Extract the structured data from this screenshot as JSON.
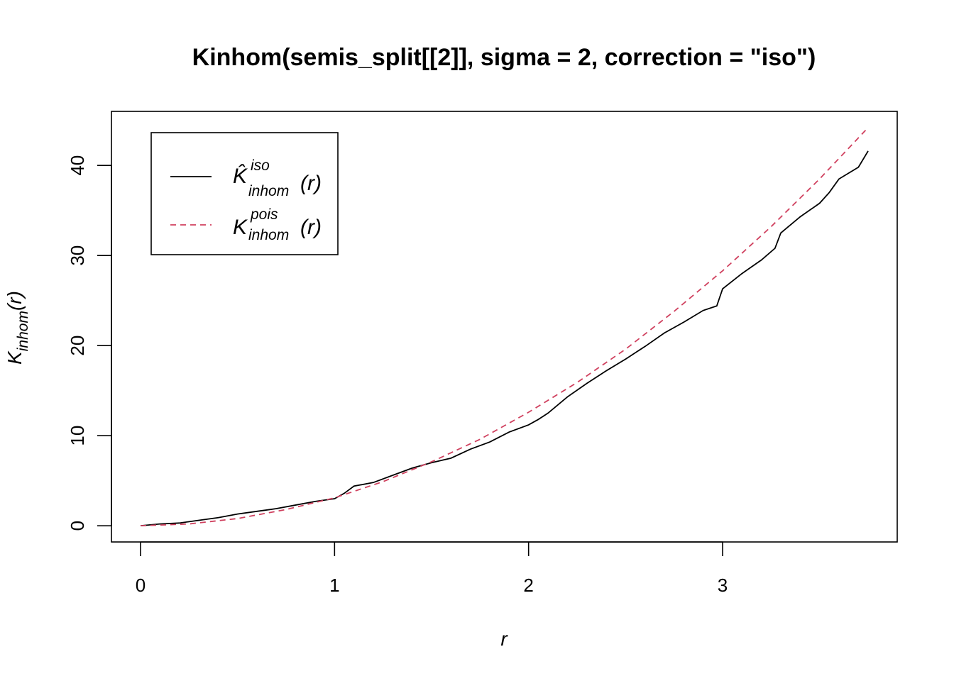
{
  "chart_data": {
    "type": "line",
    "title": "Kinhom(semis_split[[2]], sigma = 2, correction = \"iso\")",
    "xlabel": {
      "base": "r"
    },
    "ylabel": {
      "base": "K",
      "sub": "inhom",
      "arg": "(r)"
    },
    "xlim": [
      -0.15,
      3.9
    ],
    "ylim": [
      -1.8,
      46
    ],
    "x_ticks": [
      0,
      1,
      2,
      3
    ],
    "y_ticks": [
      0,
      10,
      20,
      30,
      40
    ],
    "grid": false,
    "legend": {
      "placement": "top-left",
      "entries": [
        {
          "symbol": "K̂",
          "sup": "iso",
          "sub": "inhom",
          "arg": "(r)"
        },
        {
          "symbol": "K",
          "sup": "pois",
          "sub": "inhom",
          "arg": "(r)"
        }
      ]
    },
    "series": [
      {
        "legend_index": 0,
        "color": "#000000",
        "dash": "solid",
        "x": [
          0,
          0.1,
          0.2,
          0.3,
          0.4,
          0.5,
          0.6,
          0.7,
          0.8,
          0.9,
          1.0,
          1.05,
          1.1,
          1.2,
          1.3,
          1.4,
          1.5,
          1.6,
          1.7,
          1.8,
          1.9,
          2.0,
          2.05,
          2.1,
          2.2,
          2.3,
          2.4,
          2.5,
          2.6,
          2.7,
          2.8,
          2.9,
          2.97,
          3.0,
          3.1,
          3.2,
          3.27,
          3.3,
          3.4,
          3.5,
          3.55,
          3.6,
          3.7,
          3.75
        ],
        "y": [
          0,
          0.2,
          0.3,
          0.6,
          0.9,
          1.3,
          1.6,
          1.9,
          2.3,
          2.7,
          3.0,
          3.6,
          4.4,
          4.8,
          5.6,
          6.4,
          7.0,
          7.5,
          8.5,
          9.3,
          10.4,
          11.2,
          11.8,
          12.5,
          14.3,
          15.8,
          17.2,
          18.5,
          19.9,
          21.4,
          22.6,
          23.9,
          24.4,
          26.3,
          28.0,
          29.5,
          30.8,
          32.5,
          34.3,
          35.8,
          37.0,
          38.5,
          39.8,
          41.6
        ]
      },
      {
        "legend_index": 1,
        "color": "#d0415f",
        "dash": "dashed",
        "x": [
          0,
          0.25,
          0.5,
          0.75,
          1.0,
          1.25,
          1.5,
          1.75,
          2.0,
          2.25,
          2.5,
          2.75,
          3.0,
          3.25,
          3.5,
          3.75
        ],
        "y": [
          0,
          0.2,
          0.8,
          1.8,
          3.1,
          4.9,
          7.1,
          9.6,
          12.6,
          15.9,
          19.6,
          23.8,
          28.3,
          33.2,
          38.5,
          44.2
        ]
      }
    ]
  }
}
